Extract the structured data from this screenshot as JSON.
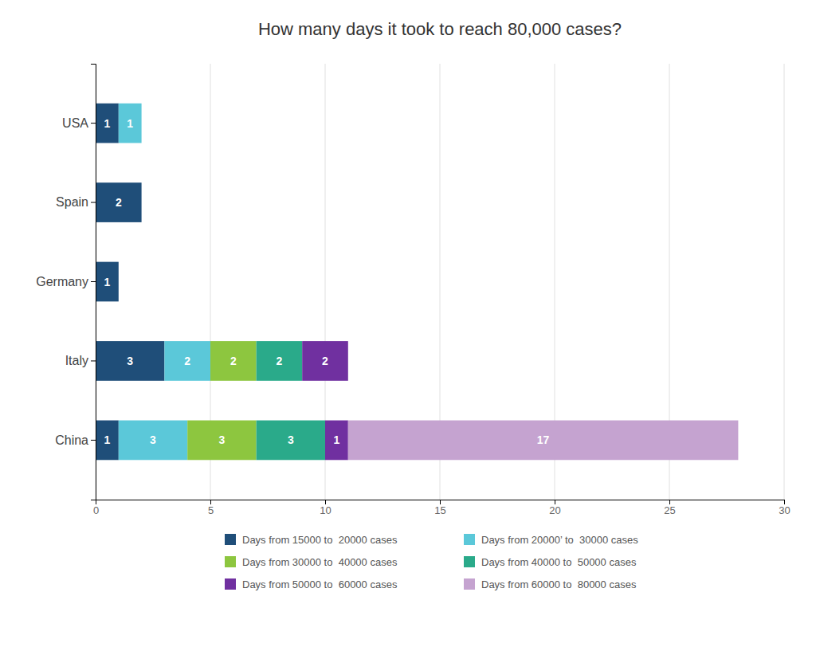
{
  "chart_data": {
    "type": "bar",
    "orientation": "horizontal",
    "stacked": true,
    "title": "How many days it took to reach 80,000 cases?",
    "categories": [
      "China",
      "Italy",
      "Germany",
      "Spain",
      "USA"
    ],
    "series": [
      {
        "name": "Days from 15000 to  20000 cases",
        "color": "#1f4e79",
        "values": [
          1,
          3,
          1,
          2,
          1
        ]
      },
      {
        "name": "Days from 20000’ to  30000 cases",
        "color": "#5bc8d9",
        "values": [
          3,
          2,
          0,
          0,
          1
        ]
      },
      {
        "name": "Days from 30000 to  40000 cases",
        "color": "#8dc63f",
        "values": [
          3,
          2,
          0,
          0,
          0
        ]
      },
      {
        "name": "Days from 40000 to  50000 cases",
        "color": "#2aaa8a",
        "values": [
          3,
          2,
          0,
          0,
          0
        ]
      },
      {
        "name": "Days from 50000 to  60000 cases",
        "color": "#7030a0",
        "values": [
          1,
          2,
          0,
          0,
          0
        ]
      },
      {
        "name": "Days from 60000 to  80000 cases",
        "color": "#c5a3d0",
        "values": [
          17,
          0,
          0,
          0,
          0
        ]
      }
    ],
    "xlim": [
      0,
      30
    ],
    "xticks": [
      0,
      5,
      10,
      15,
      20,
      25,
      30
    ],
    "grid": true,
    "data_labels": true,
    "legend": "bottom"
  }
}
